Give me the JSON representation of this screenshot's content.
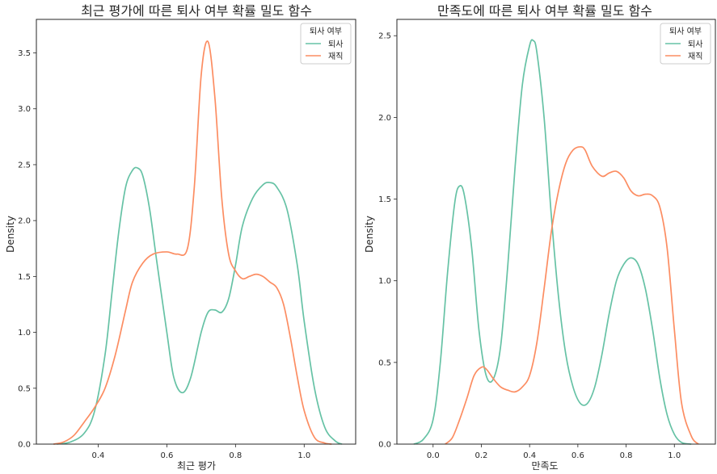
{
  "chart_data": [
    {
      "type": "line",
      "title": "최근 평가에 따른 퇴사 여부 확률 밀도 함수",
      "xlabel": "최근 평가",
      "ylabel": "Density",
      "xlim": [
        0.22,
        1.15
      ],
      "ylim": [
        0,
        3.8
      ],
      "xticks": [
        0.4,
        0.6,
        0.8,
        1.0
      ],
      "xtick_labels": [
        "0.4",
        "0.6",
        "0.8",
        "1.0"
      ],
      "yticks": [
        0.0,
        0.5,
        1.0,
        1.5,
        2.0,
        2.5,
        3.0,
        3.5
      ],
      "ytick_labels": [
        "0.0",
        "0.5",
        "1.0",
        "1.5",
        "2.0",
        "2.5",
        "3.0",
        "3.5"
      ],
      "grid": false,
      "legend": {
        "title": "퇴사 여부",
        "placement": "top-right"
      },
      "series": [
        {
          "name": "퇴사",
          "color": "#66c2a5",
          "x": [
            0.28,
            0.32,
            0.36,
            0.39,
            0.42,
            0.44,
            0.46,
            0.48,
            0.5,
            0.515,
            0.53,
            0.55,
            0.57,
            0.6,
            0.62,
            0.645,
            0.67,
            0.7,
            0.72,
            0.74,
            0.76,
            0.78,
            0.8,
            0.82,
            0.85,
            0.88,
            0.9,
            0.92,
            0.95,
            0.98,
            1.0,
            1.03,
            1.06,
            1.09,
            1.11
          ],
          "y": [
            0.0,
            0.02,
            0.1,
            0.3,
            0.8,
            1.35,
            1.9,
            2.3,
            2.45,
            2.47,
            2.4,
            2.1,
            1.65,
            1.0,
            0.6,
            0.46,
            0.6,
            1.0,
            1.18,
            1.2,
            1.18,
            1.3,
            1.6,
            1.95,
            2.2,
            2.32,
            2.34,
            2.3,
            2.1,
            1.6,
            1.1,
            0.5,
            0.15,
            0.03,
            0.0
          ]
        },
        {
          "name": "재직",
          "color": "#fc8d62",
          "x": [
            0.27,
            0.3,
            0.33,
            0.36,
            0.39,
            0.42,
            0.45,
            0.48,
            0.5,
            0.53,
            0.56,
            0.6,
            0.63,
            0.66,
            0.68,
            0.7,
            0.72,
            0.74,
            0.76,
            0.78,
            0.8,
            0.82,
            0.84,
            0.86,
            0.88,
            0.9,
            0.92,
            0.94,
            0.96,
            0.98,
            1.0,
            1.03,
            1.06,
            1.08
          ],
          "y": [
            0.0,
            0.02,
            0.08,
            0.2,
            0.33,
            0.5,
            0.8,
            1.2,
            1.45,
            1.62,
            1.7,
            1.72,
            1.7,
            1.75,
            2.3,
            3.3,
            3.6,
            3.1,
            2.2,
            1.7,
            1.55,
            1.48,
            1.5,
            1.52,
            1.5,
            1.45,
            1.4,
            1.25,
            0.95,
            0.6,
            0.3,
            0.06,
            0.01,
            0.0
          ]
        }
      ]
    },
    {
      "type": "line",
      "title": "만족도에 따른 퇴사 여부 확률 밀도 함수",
      "xlabel": "만족도",
      "ylabel": "Density",
      "xlim": [
        -0.15,
        1.17
      ],
      "ylim": [
        0,
        2.6
      ],
      "xticks": [
        0.0,
        0.2,
        0.4,
        0.6,
        0.8,
        1.0
      ],
      "xtick_labels": [
        "0.0",
        "0.2",
        "0.4",
        "0.6",
        "0.8",
        "1.0"
      ],
      "yticks": [
        0.0,
        0.5,
        1.0,
        1.5,
        2.0,
        2.5
      ],
      "ytick_labels": [
        "0.0",
        "0.5",
        "1.0",
        "1.5",
        "2.0",
        "2.5"
      ],
      "grid": false,
      "legend": {
        "title": "퇴사 여부",
        "placement": "top-right"
      },
      "series": [
        {
          "name": "퇴사",
          "color": "#66c2a5",
          "x": [
            -0.08,
            -0.04,
            0.0,
            0.03,
            0.06,
            0.09,
            0.11,
            0.13,
            0.16,
            0.19,
            0.22,
            0.25,
            0.28,
            0.31,
            0.34,
            0.37,
            0.4,
            0.415,
            0.43,
            0.46,
            0.49,
            0.52,
            0.55,
            0.58,
            0.61,
            0.64,
            0.67,
            0.7,
            0.73,
            0.76,
            0.79,
            0.82,
            0.85,
            0.88,
            0.91,
            0.94,
            0.97,
            1.0,
            1.03,
            1.07
          ],
          "y": [
            0.0,
            0.03,
            0.15,
            0.5,
            1.05,
            1.48,
            1.58,
            1.52,
            1.2,
            0.7,
            0.42,
            0.4,
            0.6,
            1.1,
            1.7,
            2.2,
            2.44,
            2.47,
            2.4,
            2.0,
            1.4,
            0.9,
            0.55,
            0.35,
            0.25,
            0.25,
            0.35,
            0.55,
            0.8,
            1.0,
            1.1,
            1.14,
            1.1,
            0.95,
            0.7,
            0.4,
            0.18,
            0.06,
            0.01,
            0.0
          ]
        },
        {
          "name": "재직",
          "color": "#fc8d62",
          "x": [
            0.05,
            0.08,
            0.11,
            0.14,
            0.17,
            0.2,
            0.22,
            0.25,
            0.28,
            0.31,
            0.34,
            0.37,
            0.4,
            0.43,
            0.46,
            0.49,
            0.52,
            0.55,
            0.58,
            0.61,
            0.63,
            0.66,
            0.7,
            0.73,
            0.76,
            0.79,
            0.82,
            0.85,
            0.88,
            0.91,
            0.94,
            0.97,
            1.0,
            1.03,
            1.07,
            1.1
          ],
          "y": [
            0.0,
            0.04,
            0.15,
            0.28,
            0.42,
            0.47,
            0.46,
            0.4,
            0.35,
            0.33,
            0.32,
            0.35,
            0.42,
            0.62,
            0.95,
            1.3,
            1.55,
            1.72,
            1.8,
            1.82,
            1.8,
            1.7,
            1.64,
            1.66,
            1.67,
            1.63,
            1.55,
            1.52,
            1.53,
            1.52,
            1.45,
            1.2,
            0.7,
            0.25,
            0.05,
            0.0
          ]
        }
      ]
    }
  ]
}
